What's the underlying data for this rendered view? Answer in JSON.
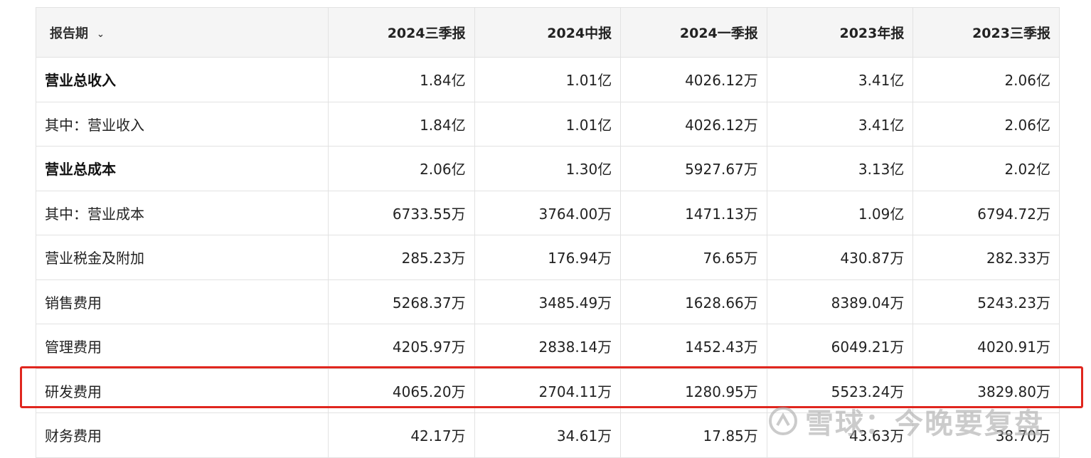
{
  "table": {
    "header": {
      "period_label": "报告期",
      "columns": [
        "2024三季报",
        "2024中报",
        "2024一季报",
        "2023年报",
        "2023三季报"
      ]
    },
    "rows": [
      {
        "label": "营业总收入",
        "bold": true,
        "values": [
          "1.84亿",
          "1.01亿",
          "4026.12万",
          "3.41亿",
          "2.06亿"
        ]
      },
      {
        "label": "其中：营业收入",
        "bold": false,
        "values": [
          "1.84亿",
          "1.01亿",
          "4026.12万",
          "3.41亿",
          "2.06亿"
        ]
      },
      {
        "label": "营业总成本",
        "bold": true,
        "values": [
          "2.06亿",
          "1.30亿",
          "5927.67万",
          "3.13亿",
          "2.02亿"
        ]
      },
      {
        "label": "其中：营业成本",
        "bold": false,
        "values": [
          "6733.55万",
          "3764.00万",
          "1471.13万",
          "1.09亿",
          "6794.72万"
        ]
      },
      {
        "label": "营业税金及附加",
        "bold": false,
        "values": [
          "285.23万",
          "176.94万",
          "76.65万",
          "430.87万",
          "282.33万"
        ]
      },
      {
        "label": "销售费用",
        "bold": false,
        "values": [
          "5268.37万",
          "3485.49万",
          "1628.66万",
          "8389.04万",
          "5243.23万"
        ]
      },
      {
        "label": "管理费用",
        "bold": false,
        "values": [
          "4205.97万",
          "2838.14万",
          "1452.43万",
          "6049.21万",
          "4020.91万"
        ]
      },
      {
        "label": "研发费用",
        "bold": false,
        "values": [
          "4065.20万",
          "2704.11万",
          "1280.95万",
          "5523.24万",
          "3829.80万"
        ]
      },
      {
        "label": "财务费用",
        "bold": false,
        "values": [
          "42.17万",
          "34.61万",
          "17.85万",
          "43.63万",
          "38.70万"
        ]
      }
    ]
  },
  "watermark": {
    "text": "雪球：今晚要复盘",
    "icon": "snowball-logo-icon"
  },
  "highlight": {
    "row_label": "研发费用",
    "color": "#e0261e"
  }
}
